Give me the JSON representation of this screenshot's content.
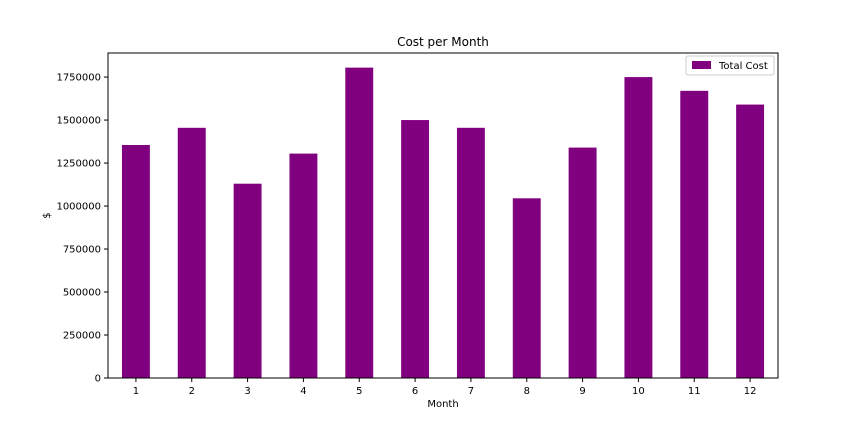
{
  "chart_data": {
    "type": "bar",
    "title": "Cost per Month",
    "xlabel": "Month",
    "ylabel": "$",
    "categories": [
      "1",
      "2",
      "3",
      "4",
      "5",
      "6",
      "7",
      "8",
      "9",
      "10",
      "11",
      "12"
    ],
    "series": [
      {
        "name": "Total Cost",
        "color": "#800080",
        "values": [
          1355000,
          1455000,
          1130000,
          1305000,
          1805000,
          1500000,
          1455000,
          1045000,
          1340000,
          1750000,
          1670000,
          1590000
        ]
      }
    ],
    "ylim": [
      0,
      1890000
    ],
    "yticks": [
      0,
      250000,
      500000,
      750000,
      1000000,
      1250000,
      1500000,
      1750000
    ],
    "grid": false,
    "legend_position": "top-right"
  }
}
